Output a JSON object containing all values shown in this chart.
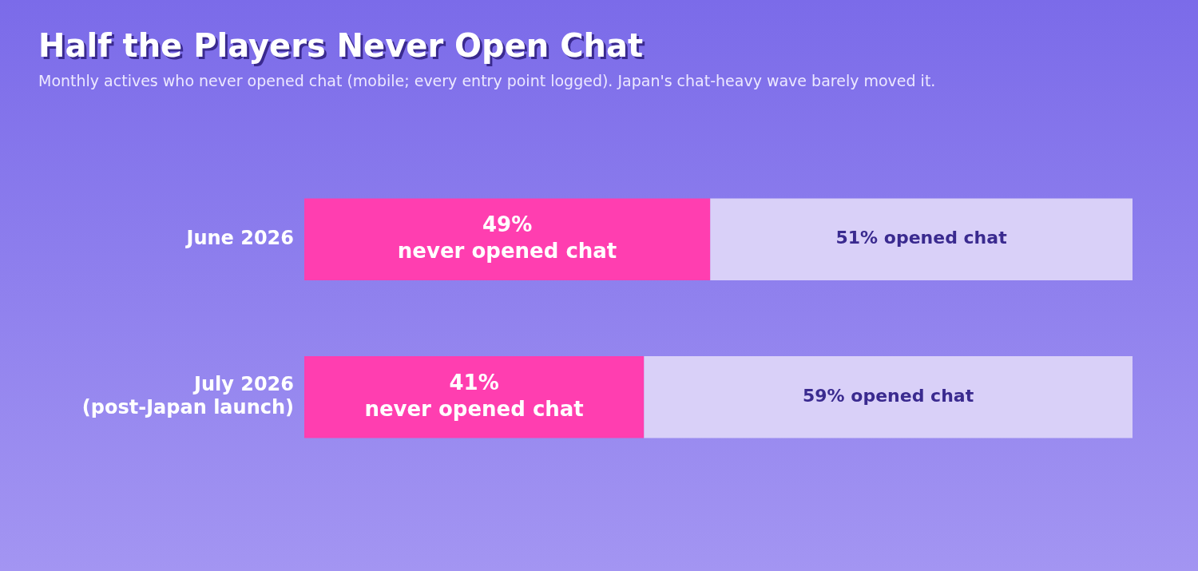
{
  "chart_data": {
    "type": "bar",
    "orientation": "horizontal",
    "stacked": true,
    "title": "Half the Players Never Open Chat",
    "subtitle": "Monthly actives who never opened chat (mobile; every entry point logged). Japan's chat-heavy wave barely moved it.",
    "categories": [
      "June 2026",
      "July 2026\n(post-Japan launch)"
    ],
    "series": [
      {
        "color": "#ff3eb0",
        "values": [
          49,
          41
        ],
        "value_labels": [
          "49%\nnever opened chat",
          "41%\nnever opened chat"
        ]
      },
      {
        "color": "#d9d0f8",
        "values": [
          51,
          59
        ],
        "value_labels": [
          "51% opened chat",
          "59% opened chat"
        ]
      }
    ],
    "xlim": [
      0,
      100
    ],
    "tick_labels": "y",
    "grid": false,
    "legend": false
  }
}
